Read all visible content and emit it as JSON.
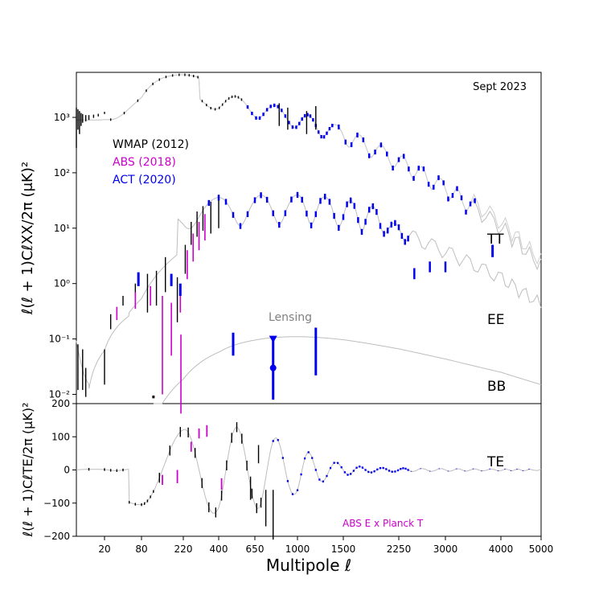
{
  "chart_data": {
    "type": "scatter",
    "note_top_right": "Sept 2023",
    "xlabel": "Multipole ℓ",
    "x_ticks": [
      "20",
      "80",
      "220",
      "400",
      "650",
      "1000",
      "1500",
      "2250",
      "3000",
      "4000",
      "5000"
    ],
    "legend": [
      {
        "name": "WMAP (2012)",
        "color": "#000000"
      },
      {
        "name": "ABS (2018)",
        "color": "#cc00cc"
      },
      {
        "name": "ACT (2020)",
        "color": "#0000ee"
      }
    ],
    "top_panel": {
      "ylabel": "ℓ(ℓ + 1)CℓXX/2π (μK)²",
      "y_ticks": [
        "10⁻²",
        "10⁻¹",
        "10⁰",
        "10¹",
        "10²",
        "10³"
      ],
      "yscale": "log",
      "curve_labels": [
        "TT",
        "EE",
        "BB"
      ],
      "lensing_label": "Lensing"
    },
    "bottom_panel": {
      "ylabel": "ℓ(ℓ + 1)CℓTE/2π (μK)²",
      "ylim": [
        -200,
        200
      ],
      "y_ticks": [
        "200",
        "100",
        "0",
        "−100",
        "−200"
      ],
      "curve_label": "TE",
      "annotation": "ABS E x Planck T"
    }
  }
}
